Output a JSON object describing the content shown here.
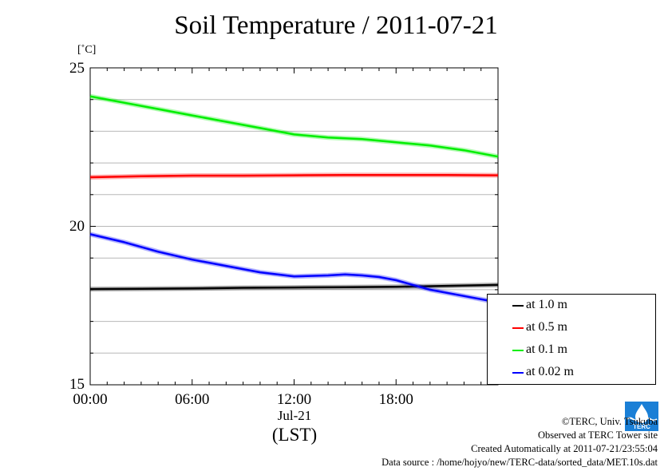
{
  "title": "Soil Temperature / 2011-07-21",
  "unit_label": "[˚C]",
  "xlabel": "(LST)",
  "date_label": "Jul-21",
  "legend": [
    {
      "label": "at 1.0 m",
      "color": "#000000"
    },
    {
      "label": "at 0.5 m",
      "color": "#ff0000"
    },
    {
      "label": "at 0.1 m",
      "color": "#00ee00"
    },
    {
      "label": "at 0.02 m",
      "color": "#0000ff"
    }
  ],
  "footer": {
    "copyright": "©TERC, Univ. Tsukuba",
    "site": "Observed at TERC Tower site",
    "created": "Created Automatically at 2011-07-21/23:55:04",
    "source": "Data source : /home/hojyo/new/TERC-data/sorted_data/MET.10s.dat"
  },
  "logo_text": "TERC",
  "chart_data": {
    "type": "line",
    "title": "Soil Temperature / 2011-07-21",
    "xlabel": "(LST)",
    "ylabel": "[˚C]",
    "x_unit": "hours",
    "xlim": [
      0,
      24
    ],
    "ylim": [
      15,
      25
    ],
    "x_ticks": [
      "00:00",
      "06:00",
      "12:00",
      "18:00"
    ],
    "x_tick_values": [
      0,
      6,
      12,
      18
    ],
    "y_ticks": [
      "15",
      "20",
      "25"
    ],
    "y_tick_values": [
      15,
      20,
      25
    ],
    "grid": true,
    "legend_position": "right",
    "series": [
      {
        "name": "at 1.0 m",
        "color": "#000000",
        "x": [
          0,
          3,
          6,
          9,
          12,
          15,
          18,
          21,
          24
        ],
        "values": [
          18.02,
          18.03,
          18.04,
          18.06,
          18.07,
          18.08,
          18.09,
          18.12,
          18.15
        ]
      },
      {
        "name": "at 0.5 m",
        "color": "#ff0000",
        "x": [
          0,
          3,
          6,
          9,
          12,
          15,
          18,
          21,
          24
        ],
        "values": [
          21.55,
          21.58,
          21.6,
          21.6,
          21.61,
          21.62,
          21.62,
          21.62,
          21.61
        ]
      },
      {
        "name": "at 0.1 m",
        "color": "#00ee00",
        "x": [
          0,
          2,
          4,
          6,
          8,
          10,
          12,
          14,
          16,
          18,
          19,
          20,
          22,
          24
        ],
        "values": [
          24.1,
          23.9,
          23.7,
          23.5,
          23.3,
          23.1,
          22.9,
          22.8,
          22.75,
          22.65,
          22.6,
          22.55,
          22.4,
          22.2
        ]
      },
      {
        "name": "at 0.02 m",
        "color": "#0000ff",
        "x": [
          0,
          2,
          4,
          6,
          8,
          10,
          12,
          14,
          15,
          16,
          17,
          18,
          19,
          20,
          22,
          24
        ],
        "values": [
          19.75,
          19.5,
          19.2,
          18.95,
          18.75,
          18.55,
          18.42,
          18.45,
          18.48,
          18.45,
          18.4,
          18.3,
          18.15,
          18.0,
          17.8,
          17.6
        ]
      }
    ]
  }
}
